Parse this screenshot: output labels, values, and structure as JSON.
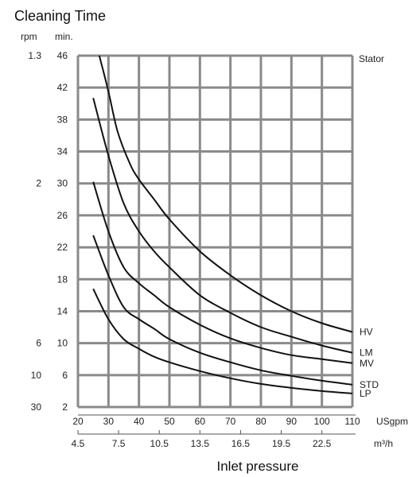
{
  "chart_data": {
    "type": "line",
    "title": "Cleaning Time",
    "xlabel": "Inlet pressure",
    "x_unit": "USgpm",
    "x2_unit": "m³/h",
    "y_unit_rpm": "rpm",
    "y_unit_min": "min.",
    "xlim": [
      20,
      110
    ],
    "ylim": [
      2,
      46
    ],
    "grid": true,
    "x_ticks": [
      "20",
      "30",
      "40",
      "50",
      "60",
      "70",
      "80",
      "90",
      "100",
      "110"
    ],
    "x2_ticks": [
      {
        "label": "4.5",
        "at": 20
      },
      {
        "label": "7.5",
        "at": 33.33
      },
      {
        "label": "10.5",
        "at": 46.67
      },
      {
        "label": "13.5",
        "at": 60
      },
      {
        "label": "16.5",
        "at": 73.33
      },
      {
        "label": "19.5",
        "at": 86.67
      },
      {
        "label": "22.5",
        "at": 100
      }
    ],
    "y_ticks": [
      "2",
      "6",
      "10",
      "14",
      "18",
      "22",
      "26",
      "30",
      "34",
      "38",
      "42",
      "46"
    ],
    "rpm_ticks": [
      {
        "label": "1.3",
        "at": 46
      },
      {
        "label": "2",
        "at": 30
      },
      {
        "label": "6",
        "at": 10
      },
      {
        "label": "10",
        "at": 6
      },
      {
        "label": "30",
        "at": 2
      }
    ],
    "series": [
      {
        "name": "HV",
        "x": [
          27,
          30,
          33,
          37,
          40,
          45,
          50,
          60,
          70,
          80,
          90,
          100,
          110
        ],
        "y": [
          46,
          41.5,
          36.5,
          32.5,
          30.5,
          28,
          25.5,
          21.5,
          18.5,
          16,
          14,
          12.5,
          11.4
        ]
      },
      {
        "name": "LM",
        "x": [
          25,
          30,
          35,
          40,
          45,
          50,
          60,
          70,
          80,
          90,
          100,
          110
        ],
        "y": [
          40.7,
          33.5,
          27.5,
          24,
          21.5,
          19.5,
          16,
          13.8,
          12,
          10.8,
          9.7,
          8.8
        ]
      },
      {
        "name": "MV",
        "x": [
          25,
          30,
          35,
          40,
          45,
          50,
          60,
          70,
          80,
          90,
          100,
          110
        ],
        "y": [
          30.2,
          24,
          19.5,
          17.5,
          16,
          14.5,
          12.3,
          10.6,
          9.4,
          8.5,
          8,
          7.5
        ]
      },
      {
        "name": "STD",
        "x": [
          25,
          30,
          35,
          40,
          45,
          50,
          60,
          70,
          80,
          90,
          100,
          110
        ],
        "y": [
          23.5,
          18.5,
          14.5,
          13,
          11.8,
          10.5,
          8.8,
          7.6,
          6.6,
          5.9,
          5.3,
          4.8
        ]
      },
      {
        "name": "LP",
        "x": [
          25,
          30,
          35,
          40,
          45,
          50,
          60,
          70,
          80,
          90,
          100,
          110
        ],
        "y": [
          16.8,
          13,
          10.5,
          9.3,
          8.3,
          7.6,
          6.5,
          5.6,
          4.9,
          4.4,
          4,
          3.7
        ]
      }
    ],
    "annotations": [
      {
        "text": "Stator",
        "x": 110,
        "y": 46
      }
    ]
  }
}
